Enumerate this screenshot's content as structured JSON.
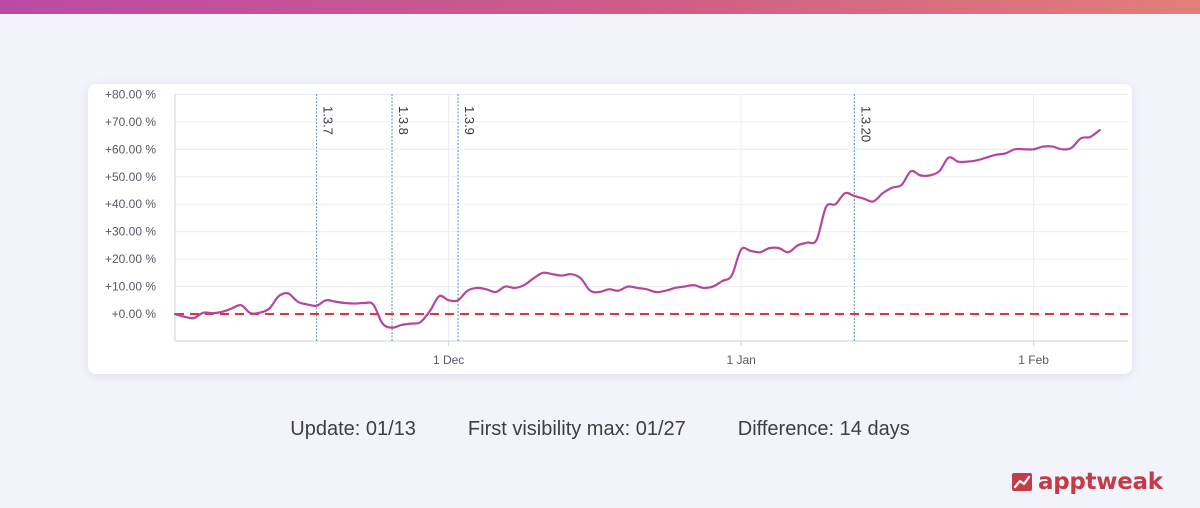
{
  "brand": {
    "name": "apptweak",
    "color": "#c63b48",
    "top_bar_colors": [
      "#b94ba6",
      "#e07f79"
    ]
  },
  "stats": {
    "update": "Update: 01/13",
    "first_visibility_max": "First visibility max: 01/27",
    "difference": "Difference: 14 days"
  },
  "chart_data": {
    "type": "line",
    "title": "",
    "xlabel": "",
    "ylabel": "",
    "grid": true,
    "y_range": [
      -10,
      80
    ],
    "y_ticks": [
      0,
      10,
      20,
      30,
      40,
      50,
      60,
      70,
      80
    ],
    "y_tick_labels": [
      "+0.00 %",
      "+10.00 %",
      "+20.00 %",
      "+30.00 %",
      "+40.00 %",
      "+50.00 %",
      "+60.00 %",
      "+70.00 %",
      "+80.00 %"
    ],
    "x_range": [
      "2024-11-02",
      "2025-02-11"
    ],
    "x_ticks": [
      {
        "date": "2024-12-01",
        "label": "1 Dec"
      },
      {
        "date": "2025-01-01",
        "label": "1 Jan"
      },
      {
        "date": "2025-02-01",
        "label": "1 Feb"
      }
    ],
    "baseline": {
      "value": 0,
      "color": "#d9363e",
      "style": "dashed"
    },
    "release_markers": [
      {
        "date": "2024-11-17",
        "label": "1.3.7"
      },
      {
        "date": "2024-11-25",
        "label": "1.3.8"
      },
      {
        "date": "2024-12-02",
        "label": "1.3.9"
      },
      {
        "date": "2025-01-13",
        "label": "1.3.20"
      }
    ],
    "series": [
      {
        "color": "#b4479b",
        "points": [
          [
            "2024-11-02",
            0
          ],
          [
            "2024-11-03",
            -1
          ],
          [
            "2024-11-04",
            -1.5
          ],
          [
            "2024-11-05",
            0.5
          ],
          [
            "2024-11-06",
            0.3
          ],
          [
            "2024-11-07",
            0.8
          ],
          [
            "2024-11-08",
            2
          ],
          [
            "2024-11-09",
            3.2
          ],
          [
            "2024-11-10",
            0.3
          ],
          [
            "2024-11-11",
            0.5
          ],
          [
            "2024-11-12",
            2
          ],
          [
            "2024-11-13",
            6.5
          ],
          [
            "2024-11-14",
            7.5
          ],
          [
            "2024-11-15",
            4.5
          ],
          [
            "2024-11-16",
            3.5
          ],
          [
            "2024-11-17",
            3
          ],
          [
            "2024-11-18",
            5
          ],
          [
            "2024-11-19",
            4.5
          ],
          [
            "2024-11-20",
            4
          ],
          [
            "2024-11-21",
            3.8
          ],
          [
            "2024-11-22",
            4
          ],
          [
            "2024-11-23",
            3.5
          ],
          [
            "2024-11-24",
            -3.5
          ],
          [
            "2024-11-25",
            -5
          ],
          [
            "2024-11-26",
            -4
          ],
          [
            "2024-11-27",
            -3.5
          ],
          [
            "2024-11-28",
            -3
          ],
          [
            "2024-11-29",
            1
          ],
          [
            "2024-11-30",
            6.5
          ],
          [
            "2024-12-01",
            5
          ],
          [
            "2024-12-02",
            5
          ],
          [
            "2024-12-03",
            8.5
          ],
          [
            "2024-12-04",
            9.5
          ],
          [
            "2024-12-05",
            9
          ],
          [
            "2024-12-06",
            8
          ],
          [
            "2024-12-07",
            10
          ],
          [
            "2024-12-08",
            9.5
          ],
          [
            "2024-12-09",
            10.5
          ],
          [
            "2024-12-10",
            13
          ],
          [
            "2024-12-11",
            15
          ],
          [
            "2024-12-12",
            14.5
          ],
          [
            "2024-12-13",
            14
          ],
          [
            "2024-12-14",
            14.5
          ],
          [
            "2024-12-15",
            13
          ],
          [
            "2024-12-16",
            8.5
          ],
          [
            "2024-12-17",
            8
          ],
          [
            "2024-12-18",
            9
          ],
          [
            "2024-12-19",
            8.5
          ],
          [
            "2024-12-20",
            10
          ],
          [
            "2024-12-21",
            9.5
          ],
          [
            "2024-12-22",
            9
          ],
          [
            "2024-12-23",
            8
          ],
          [
            "2024-12-24",
            8.5
          ],
          [
            "2024-12-25",
            9.5
          ],
          [
            "2024-12-26",
            10
          ],
          [
            "2024-12-27",
            10.5
          ],
          [
            "2024-12-28",
            9.5
          ],
          [
            "2024-12-29",
            10
          ],
          [
            "2024-12-30",
            12
          ],
          [
            "2024-12-31",
            14
          ],
          [
            "2025-01-01",
            23.5
          ],
          [
            "2025-01-02",
            23
          ],
          [
            "2025-01-03",
            22.5
          ],
          [
            "2025-01-04",
            24
          ],
          [
            "2025-01-05",
            24
          ],
          [
            "2025-01-06",
            22.5
          ],
          [
            "2025-01-07",
            25
          ],
          [
            "2025-01-08",
            26
          ],
          [
            "2025-01-09",
            27
          ],
          [
            "2025-01-10",
            39
          ],
          [
            "2025-01-11",
            40
          ],
          [
            "2025-01-12",
            44
          ],
          [
            "2025-01-13",
            43
          ],
          [
            "2025-01-14",
            42
          ],
          [
            "2025-01-15",
            41
          ],
          [
            "2025-01-16",
            44
          ],
          [
            "2025-01-17",
            46
          ],
          [
            "2025-01-18",
            47
          ],
          [
            "2025-01-19",
            52
          ],
          [
            "2025-01-20",
            50.5
          ],
          [
            "2025-01-21",
            50.5
          ],
          [
            "2025-01-22",
            52
          ],
          [
            "2025-01-23",
            57
          ],
          [
            "2025-01-24",
            55.5
          ],
          [
            "2025-01-25",
            55.5
          ],
          [
            "2025-01-26",
            56
          ],
          [
            "2025-01-27",
            57
          ],
          [
            "2025-01-28",
            58
          ],
          [
            "2025-01-29",
            58.5
          ],
          [
            "2025-01-30",
            60
          ],
          [
            "2025-01-31",
            60
          ],
          [
            "2025-02-01",
            60
          ],
          [
            "2025-02-02",
            61
          ],
          [
            "2025-02-03",
            61
          ],
          [
            "2025-02-04",
            60
          ],
          [
            "2025-02-05",
            60.5
          ],
          [
            "2025-02-06",
            64
          ],
          [
            "2025-02-07",
            64.5
          ],
          [
            "2025-02-08",
            67
          ]
        ]
      }
    ]
  }
}
